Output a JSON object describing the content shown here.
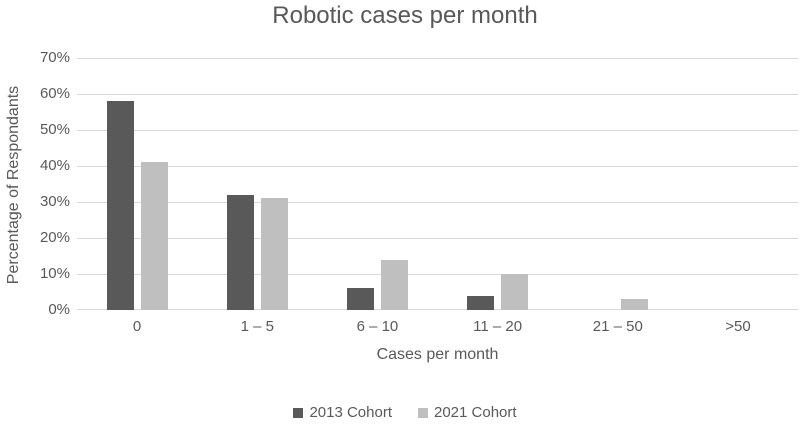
{
  "title": "Robotic cases per month",
  "axes": {
    "y_title": "Percentage of Respondants",
    "x_title": "Cases per month"
  },
  "colors": {
    "series_2013": "#595959",
    "series_2021": "#bfbfbf",
    "gridline": "#d9d9d9",
    "axis_line": "#d9d9d9",
    "text": "#595959"
  },
  "chart_data": {
    "type": "bar",
    "title": "Robotic cases per month",
    "xlabel": "Cases per month",
    "ylabel": "Percentage of Respondants",
    "categories": [
      "0",
      "1 – 5",
      "6 – 10",
      "11 – 20",
      "21 – 50",
      ">50"
    ],
    "series": [
      {
        "name": "2013 Cohort",
        "color": "#595959",
        "values": [
          58,
          32,
          6,
          4,
          0,
          0
        ]
      },
      {
        "name": "2021 Cohort",
        "color": "#bfbfbf",
        "values": [
          41,
          31,
          14,
          10,
          3,
          0
        ]
      }
    ],
    "ylim": [
      0,
      70
    ],
    "ytick_step": 10,
    "ytick_labels": [
      "0%",
      "10%",
      "20%",
      "30%",
      "40%",
      "50%",
      "60%",
      "70%"
    ],
    "value_unit": "%",
    "grid": true,
    "legend_position": "bottom"
  },
  "legend": {
    "items": [
      {
        "label": "2013 Cohort",
        "color": "#595959"
      },
      {
        "label": "2021 Cohort",
        "color": "#bfbfbf"
      }
    ]
  }
}
